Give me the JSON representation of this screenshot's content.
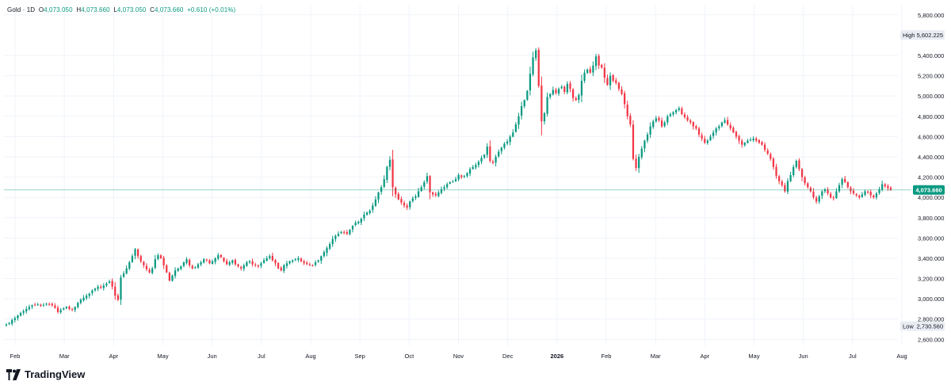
{
  "header": {
    "symbol": "Gold",
    "sep": "·",
    "interval": "1D",
    "open_label": "O",
    "open": "4,073.050",
    "high_label": "H",
    "high": "4,073.660",
    "low_label": "L",
    "low": "4,073.050",
    "close_label": "C",
    "close": "4,073.660",
    "change": "+0.610 (+0.01%)"
  },
  "brand": "TradingView",
  "colors": {
    "up": "#089981",
    "down": "#f23645",
    "last_price_line": "#089981",
    "grid": "#f0f3fa",
    "axis_text": "#131722",
    "tag_bg": "#e9ecf2"
  },
  "chart_data": {
    "type": "candlestick",
    "ylim": [
      2540,
      5900
    ],
    "price_ticks": [
      "2,600.000",
      "2,800.000",
      "3,000.000",
      "3,200.000",
      "3,400.000",
      "3,600.000",
      "3,800.000",
      "4,000.000",
      "4,200.000",
      "4,400.000",
      "4,600.000",
      "4,800.000",
      "5,000.000",
      "5,200.000",
      "5,400.000",
      "5,800.000"
    ],
    "month_labels": [
      "Feb",
      "Mar",
      "Apr",
      "May",
      "Jun",
      "Jul",
      "Aug",
      "Sep",
      "Oct",
      "Nov",
      "Dec",
      "2026",
      "Feb",
      "Mar",
      "Apr",
      "May",
      "Jun",
      "Jul",
      "Aug"
    ],
    "last_price": {
      "label": "4,073.660",
      "value": 4073.66
    },
    "high_marker": {
      "label": "High",
      "value_text": "5,602.225",
      "value": 5602.225
    },
    "low_marker": {
      "label": "Low",
      "value_text": "2,730.560",
      "value": 2730.56
    },
    "series_close": [
      2745,
      2760,
      2790,
      2810,
      2835,
      2860,
      2880,
      2900,
      2920,
      2935,
      2940,
      2945,
      2930,
      2940,
      2950,
      2945,
      2935,
      2910,
      2870,
      2890,
      2905,
      2920,
      2900,
      2895,
      2920,
      2960,
      2990,
      3010,
      3030,
      3050,
      3080,
      3100,
      3120,
      3110,
      3130,
      3150,
      3170,
      3120,
      3030,
      2990,
      3210,
      3250,
      3300,
      3360,
      3420,
      3490,
      3420,
      3370,
      3330,
      3290,
      3260,
      3300,
      3390,
      3430,
      3400,
      3330,
      3260,
      3180,
      3230,
      3280,
      3300,
      3320,
      3360,
      3390,
      3330,
      3300,
      3310,
      3340,
      3360,
      3390,
      3380,
      3350,
      3370,
      3400,
      3430,
      3410,
      3370,
      3340,
      3360,
      3380,
      3340,
      3320,
      3300,
      3330,
      3360,
      3370,
      3340,
      3330,
      3320,
      3350,
      3380,
      3400,
      3420,
      3380,
      3350,
      3300,
      3280,
      3330,
      3350,
      3370,
      3380,
      3390,
      3400,
      3370,
      3350,
      3340,
      3330,
      3330,
      3360,
      3380,
      3420,
      3460,
      3500,
      3540,
      3590,
      3620,
      3640,
      3660,
      3650,
      3640,
      3680,
      3720,
      3750,
      3760,
      3790,
      3830,
      3850,
      3870,
      3920,
      3980,
      4050,
      4100,
      4180,
      4300,
      4370,
      4100,
      4030,
      3980,
      3950,
      3920,
      3900,
      3960,
      3990,
      4010,
      4060,
      4100,
      4150,
      4210,
      4050,
      4030,
      4020,
      4050,
      4080,
      4100,
      4130,
      4150,
      4160,
      4180,
      4220,
      4200,
      4210,
      4240,
      4280,
      4300,
      4320,
      4350,
      4390,
      4420,
      4500,
      4360,
      4340,
      4400,
      4450,
      4490,
      4530,
      4550,
      4600,
      4640,
      4720,
      4800,
      4900,
      4960,
      5050,
      5220,
      5380,
      5450,
      5100,
      4750,
      4830,
      4990,
      5020,
      5060,
      5030,
      5070,
      5090,
      5040,
      5120,
      5070,
      4980,
      4960,
      5010,
      5150,
      5230,
      5260,
      5230,
      5300,
      5390,
      5300,
      5280,
      5180,
      5110,
      5200,
      5150,
      5130,
      5070,
      5020,
      4920,
      4800,
      4720,
      4380,
      4290,
      4400,
      4480,
      4560,
      4620,
      4700,
      4750,
      4780,
      4760,
      4700,
      4740,
      4800,
      4820,
      4840,
      4860,
      4880,
      4820,
      4790,
      4760,
      4740,
      4700,
      4680,
      4620,
      4580,
      4540,
      4560,
      4600,
      4640,
      4680,
      4700,
      4740,
      4760,
      4720,
      4680,
      4640,
      4600,
      4560,
      4520,
      4540,
      4560,
      4570,
      4580,
      4560,
      4540,
      4520,
      4470,
      4430,
      4380,
      4300,
      4210,
      4160,
      4120,
      4060,
      4160,
      4220,
      4300,
      4360,
      4280,
      4200,
      4140,
      4100,
      4060,
      4000,
      3960,
      4010,
      4060,
      4080,
      4040,
      4000,
      3990,
      4060,
      4120,
      4180,
      4150,
      4100,
      4060,
      4040,
      4020,
      4000,
      4030,
      4060,
      4050,
      4020,
      4000,
      4040,
      4080,
      4130,
      4110,
      4090,
      4073.66
    ]
  }
}
